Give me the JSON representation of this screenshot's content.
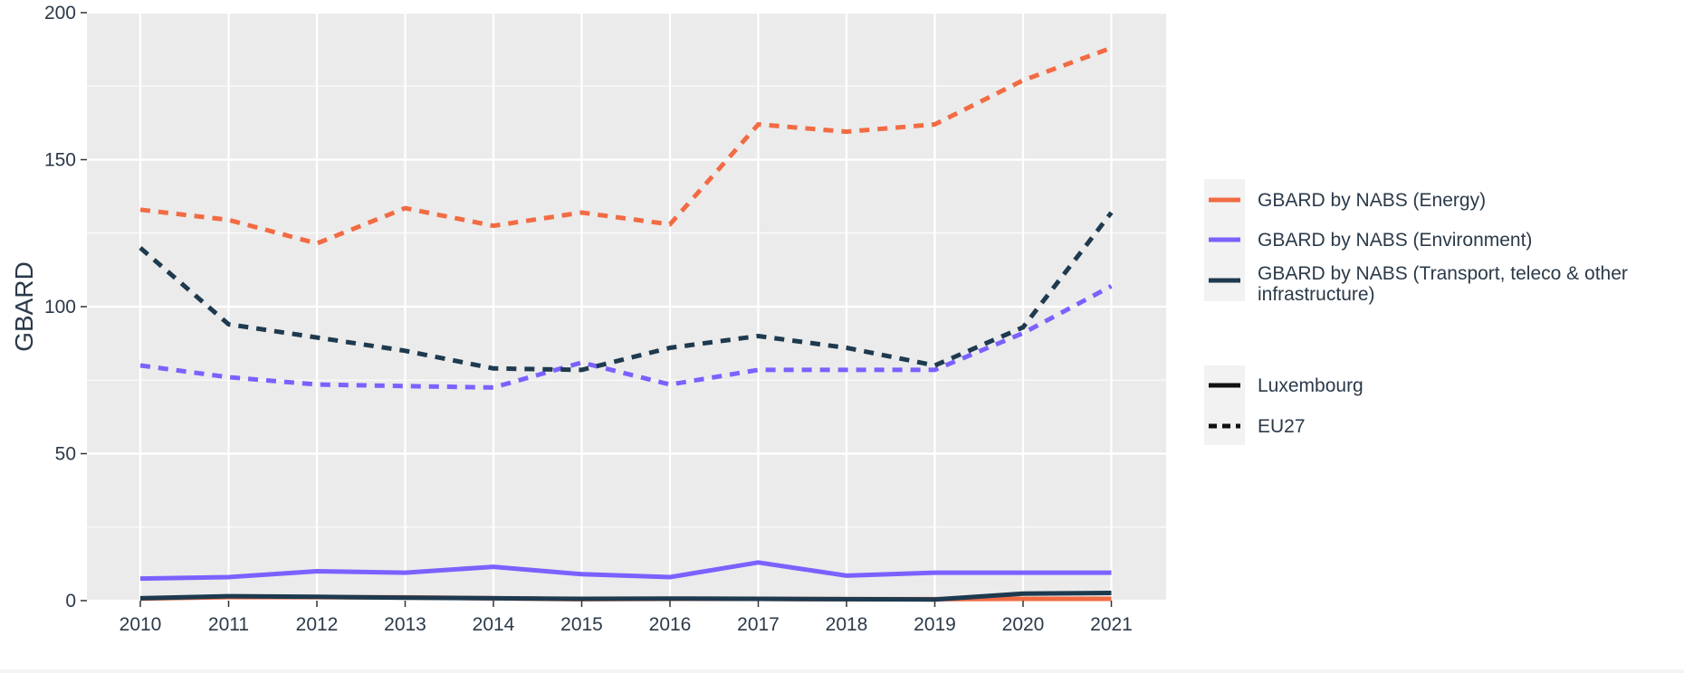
{
  "chart_data": {
    "type": "line",
    "title": "",
    "xlabel": "",
    "ylabel": "GBARD",
    "x": [
      "2010",
      "2011",
      "2012",
      "2013",
      "2014",
      "2015",
      "2016",
      "2017",
      "2018",
      "2019",
      "2020",
      "2021"
    ],
    "yticks": [
      "0",
      "50",
      "100",
      "150",
      "200"
    ],
    "ylim": [
      0,
      200
    ],
    "grid": true,
    "legend_position": "right",
    "series": [
      {
        "name": "GBARD by NABS (Energy)",
        "geo": "EU27",
        "color": "#f26b43",
        "dash": true,
        "values": [
          133,
          129.5,
          121.5,
          133.5,
          127.5,
          132,
          128,
          162,
          159.5,
          162,
          177,
          188
        ]
      },
      {
        "name": "GBARD by NABS (Environment)",
        "geo": "EU27",
        "color": "#7b61ff",
        "dash": true,
        "values": [
          80,
          76,
          73.5,
          73,
          72.5,
          81,
          73.5,
          78.5,
          78.5,
          78.5,
          91,
          107
        ]
      },
      {
        "name": "GBARD by NABS (Transport, teleco & other infrastructure)",
        "geo": "EU27",
        "color": "#1e3a4f",
        "dash": true,
        "values": [
          120,
          94,
          89.5,
          85,
          79,
          78.5,
          86,
          90,
          86,
          80,
          93,
          132
        ]
      },
      {
        "name": "GBARD by NABS (Energy)",
        "geo": "Luxembourg",
        "color": "#f26b43",
        "dash": false,
        "values": [
          0.7,
          1.2,
          1.2,
          1.1,
          0.8,
          0.5,
          0.6,
          0.6,
          0.5,
          0.5,
          0.6,
          0.6
        ]
      },
      {
        "name": "GBARD by NABS (Environment)",
        "geo": "Luxembourg",
        "color": "#7b61ff",
        "dash": false,
        "values": [
          7.5,
          8,
          10,
          9.5,
          11.5,
          9,
          8,
          13,
          8.5,
          9.5,
          9.5,
          9.5
        ]
      },
      {
        "name": "GBARD by NABS (Transport, teleco & other infrastructure)",
        "geo": "Luxembourg",
        "color": "#1e3a4f",
        "dash": false,
        "values": [
          0.8,
          1.5,
          1.3,
          1.0,
          0.8,
          0.6,
          0.7,
          0.6,
          0.5,
          0.4,
          2.4,
          2.6
        ]
      }
    ],
    "legend_indicators": [
      {
        "label": "GBARD by NABS (Energy)",
        "color": "#f26b43"
      },
      {
        "label": "GBARD by NABS (Environment)",
        "color": "#7b61ff"
      },
      {
        "label": "GBARD by NABS (Transport, teleco & other infrastructure)",
        "lines": [
          "GBARD by NABS (Transport, teleco & other",
          "infrastructure)"
        ],
        "color": "#1e3a4f"
      }
    ],
    "legend_geo": [
      {
        "label": "Luxembourg",
        "dash": false
      },
      {
        "label": "EU27",
        "dash": true
      }
    ],
    "colors": {
      "panel": "#ebebeb",
      "legend_key_bg": "#f2f2f2",
      "text": "#2b3a4a"
    }
  }
}
